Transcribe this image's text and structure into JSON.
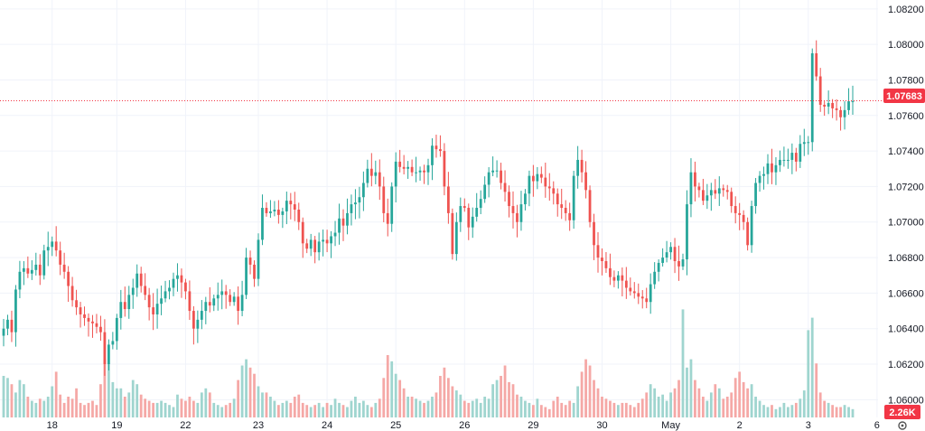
{
  "chart_data": {
    "type": "candlestick",
    "grid": true,
    "colors": {
      "up": "#26a69a",
      "down": "#ef5350",
      "up_volume": "#9fd5cf",
      "down_volume": "#f5a8a6",
      "grid": "#f0f3fa",
      "axis_text": "#131722",
      "last_price": "#f23645",
      "volume_tag": "#f23645"
    },
    "y_axis": {
      "side": "right",
      "range": [
        1.059,
        1.0825
      ],
      "ticks": [
        "1.08200",
        "1.08000",
        "1.07800",
        "1.07600",
        "1.07400",
        "1.07200",
        "1.07000",
        "1.06800",
        "1.06600",
        "1.06400",
        "1.06200",
        "1.06000"
      ]
    },
    "x_axis": {
      "ticks": [
        "18",
        "19",
        "22",
        "23",
        "24",
        "25",
        "26",
        "29",
        "30",
        "May",
        "2",
        "3",
        "6"
      ],
      "tick_positions_index": [
        12,
        28,
        45,
        63,
        80,
        97,
        114,
        131,
        148,
        165,
        182,
        199,
        216
      ]
    },
    "last_price": "1.07683",
    "volume_label": "2.26K",
    "settings_icon": "gear-icon",
    "close_series": [
      1.064,
      1.0645,
      1.0638,
      1.0662,
      1.0672,
      1.0674,
      1.0671,
      1.0673,
      1.0676,
      1.067,
      1.0684,
      1.0686,
      1.0689,
      1.0684,
      1.0676,
      1.0672,
      1.0664,
      1.0656,
      1.0652,
      1.0648,
      1.0646,
      1.0644,
      1.0643,
      1.0641,
      1.0638,
      1.062,
      1.0631,
      1.0633,
      1.0646,
      1.0655,
      1.0651,
      1.0659,
      1.0663,
      1.0671,
      1.0664,
      1.0659,
      1.0652,
      1.0648,
      1.0654,
      1.0657,
      1.0661,
      1.0663,
      1.0668,
      1.067,
      1.0666,
      1.0661,
      1.065,
      1.064,
      1.0645,
      1.065,
      1.0655,
      1.0653,
      1.0657,
      1.0659,
      1.0661,
      1.0659,
      1.0655,
      1.0658,
      1.065,
      1.0659,
      1.068,
      1.0676,
      1.0668,
      1.069,
      1.0708,
      1.0705,
      1.0706,
      1.0707,
      1.0704,
      1.0706,
      1.0712,
      1.071,
      1.0707,
      1.07,
      1.0688,
      1.0685,
      1.069,
      1.0683,
      1.0689,
      1.069,
      1.0688,
      1.0692,
      1.0694,
      1.0702,
      1.0698,
      1.0705,
      1.071,
      1.0711,
      1.0714,
      1.0722,
      1.073,
      1.0726,
      1.0728,
      1.072,
      1.0705,
      1.0699,
      1.072,
      1.0734,
      1.0731,
      1.073,
      1.0731,
      1.0728,
      1.0728,
      1.0729,
      1.0728,
      1.0732,
      1.0743,
      1.0741,
      1.074,
      1.072,
      1.0705,
      1.0682,
      1.07,
      1.0709,
      1.0708,
      1.0697,
      1.0703,
      1.0708,
      1.0713,
      1.0721,
      1.0728,
      1.0729,
      1.0729,
      1.0722,
      1.0717,
      1.0709,
      1.0705,
      1.07,
      1.071,
      1.0716,
      1.0726,
      1.0723,
      1.0727,
      1.0725,
      1.072,
      1.0719,
      1.0716,
      1.071,
      1.0708,
      1.0705,
      1.0701,
      1.0726,
      1.0735,
      1.0728,
      1.0718,
      1.07,
      1.0687,
      1.068,
      1.0678,
      1.0674,
      1.0669,
      1.0667,
      1.067,
      1.0667,
      1.0663,
      1.0661,
      1.066,
      1.0658,
      1.0657,
      1.0655,
      1.0665,
      1.0672,
      1.0677,
      1.068,
      1.0683,
      1.0686,
      1.0678,
      1.0675,
      1.0679,
      1.071,
      1.0728,
      1.072,
      1.0718,
      1.0712,
      1.0715,
      1.0718,
      1.0716,
      1.0719,
      1.0718,
      1.0717,
      1.0709,
      1.0705,
      1.0704,
      1.07,
      1.0687,
      1.0709,
      1.0722,
      1.0726,
      1.0727,
      1.0733,
      1.0728,
      1.0732,
      1.0735,
      1.0735,
      1.0735,
      1.0739,
      1.0734,
      1.0744,
      1.0745,
      1.0745,
      1.0795,
      1.0782,
      1.0766,
      1.0765,
      1.0767,
      1.0764,
      1.0763,
      1.0759,
      1.0763,
      1.0768,
      1.0768
    ],
    "volume_series": [
      0.2,
      0.19,
      0.16,
      0.12,
      0.18,
      0.16,
      0.1,
      0.08,
      0.07,
      0.09,
      0.08,
      0.1,
      0.15,
      0.22,
      0.11,
      0.07,
      0.1,
      0.09,
      0.14,
      0.07,
      0.06,
      0.07,
      0.08,
      0.06,
      0.16,
      0.28,
      0.26,
      0.17,
      0.14,
      0.14,
      0.1,
      0.12,
      0.18,
      0.16,
      0.11,
      0.09,
      0.08,
      0.07,
      0.07,
      0.08,
      0.07,
      0.06,
      0.05,
      0.11,
      0.09,
      0.08,
      0.1,
      0.08,
      0.07,
      0.12,
      0.14,
      0.12,
      0.07,
      0.06,
      0.05,
      0.06,
      0.07,
      0.09,
      0.18,
      0.25,
      0.28,
      0.24,
      0.21,
      0.15,
      0.12,
      0.12,
      0.1,
      0.08,
      0.06,
      0.07,
      0.08,
      0.07,
      0.1,
      0.11,
      0.07,
      0.06,
      0.05,
      0.06,
      0.07,
      0.05,
      0.07,
      0.06,
      0.09,
      0.07,
      0.06,
      0.05,
      0.08,
      0.1,
      0.07,
      0.08,
      0.06,
      0.05,
      0.07,
      0.09,
      0.19,
      0.3,
      0.27,
      0.21,
      0.18,
      0.14,
      0.1,
      0.1,
      0.09,
      0.08,
      0.07,
      0.08,
      0.1,
      0.12,
      0.2,
      0.24,
      0.19,
      0.15,
      0.13,
      0.11,
      0.08,
      0.07,
      0.08,
      0.09,
      0.07,
      0.1,
      0.09,
      0.16,
      0.18,
      0.2,
      0.25,
      0.17,
      0.16,
      0.11,
      0.1,
      0.08,
      0.07,
      0.06,
      0.09,
      0.06,
      0.05,
      0.04,
      0.08,
      0.1,
      0.07,
      0.06,
      0.08,
      0.07,
      0.15,
      0.22,
      0.28,
      0.25,
      0.18,
      0.14,
      0.1,
      0.09,
      0.08,
      0.07,
      0.06,
      0.07,
      0.07,
      0.06,
      0.05,
      0.07,
      0.09,
      0.12,
      0.16,
      0.14,
      0.1,
      0.11,
      0.08,
      0.12,
      0.14,
      0.18,
      0.52,
      0.24,
      0.28,
      0.18,
      0.14,
      0.1,
      0.08,
      0.12,
      0.16,
      0.14,
      0.09,
      0.1,
      0.12,
      0.19,
      0.22,
      0.17,
      0.14,
      0.16,
      0.1,
      0.08,
      0.06,
      0.05,
      0.06,
      0.04,
      0.05,
      0.07,
      0.05,
      0.06,
      0.07,
      0.09,
      0.13,
      0.42,
      0.48,
      0.26,
      0.12,
      0.08,
      0.07,
      0.06,
      0.05,
      0.05,
      0.06,
      0.05,
      0.04
    ]
  }
}
